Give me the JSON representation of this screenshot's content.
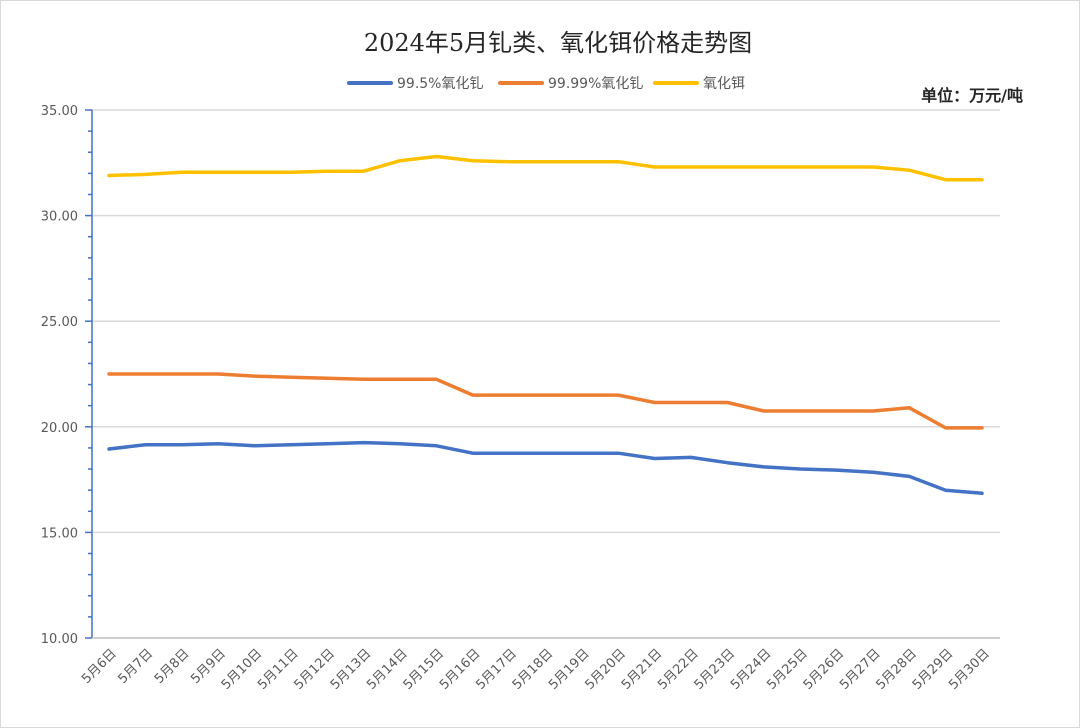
{
  "chart_data": {
    "type": "line",
    "title": "2024年5月钆类、氧化铒价格走势图",
    "unit": "单位：万元/吨",
    "ylim": [
      10,
      35
    ],
    "yticks": [
      "10.00",
      "15.00",
      "20.00",
      "25.00",
      "30.00",
      "35.00"
    ],
    "grid": true,
    "legend_position": "top",
    "categories": [
      "5月6日",
      "5月7日",
      "5月8日",
      "5月9日",
      "5月10日",
      "5月11日",
      "5月12日",
      "5月13日",
      "5月14日",
      "5月15日",
      "5月16日",
      "5月17日",
      "5月18日",
      "5月19日",
      "5月20日",
      "5月21日",
      "5月22日",
      "5月23日",
      "5月24日",
      "5月25日",
      "5月26日",
      "5月27日",
      "5月28日",
      "5月29日",
      "5月30日"
    ],
    "series": [
      {
        "name": "99.5%氧化钆",
        "color": "#4472c4",
        "values": [
          18.95,
          19.15,
          19.15,
          19.2,
          19.1,
          19.15,
          19.2,
          19.25,
          19.2,
          19.1,
          18.75,
          18.75,
          18.75,
          18.75,
          18.75,
          18.5,
          18.55,
          18.3,
          18.1,
          18.0,
          17.95,
          17.85,
          17.65,
          17.0,
          16.85
        ]
      },
      {
        "name": "99.99%氧化钆",
        "color": "#ed7d31",
        "values": [
          22.5,
          22.5,
          22.5,
          22.5,
          22.4,
          22.35,
          22.3,
          22.25,
          22.25,
          22.25,
          21.5,
          21.5,
          21.5,
          21.5,
          21.5,
          21.15,
          21.15,
          21.15,
          20.75,
          20.75,
          20.75,
          20.75,
          20.9,
          19.95,
          19.95
        ]
      },
      {
        "name": "氧化铒",
        "color": "#ffc000",
        "values": [
          31.9,
          31.95,
          32.05,
          32.05,
          32.05,
          32.05,
          32.1,
          32.1,
          32.6,
          32.8,
          32.6,
          32.55,
          32.55,
          32.55,
          32.55,
          32.3,
          32.3,
          32.3,
          32.3,
          32.3,
          32.3,
          32.3,
          32.15,
          31.7,
          31.7
        ]
      }
    ]
  }
}
